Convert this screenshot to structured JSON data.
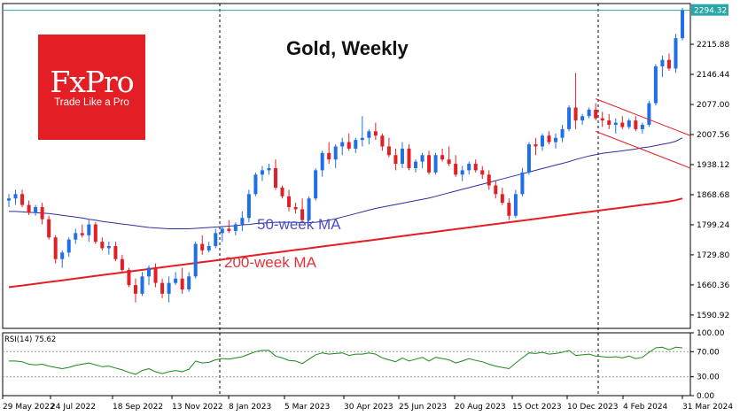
{
  "chart_title": "Gold, Weekly",
  "logo": {
    "brand": "FxPro",
    "tagline": "Trade Like a Pro"
  },
  "annotations": {
    "ma50": "50-week MA",
    "ma200": "200-week MA"
  },
  "rsi_label": "RSI(14) 75.62",
  "colors": {
    "up": "#1f6fe8",
    "down": "#e31e24",
    "ma50": "#2b2fa0",
    "ma200": "#e31e24",
    "rsi": "#1a8a1a",
    "price_line": "#2aa6a6",
    "channel": "#e31e24"
  },
  "chart_data": {
    "type": "candlestick",
    "title": "Gold, Weekly",
    "x_ticks": [
      "29 May 2022",
      "24 Jul 2022",
      "18 Sep 2022",
      "13 Nov 2022",
      "8 Jan 2023",
      "5 Mar 2023",
      "30 Apr 2023",
      "25 Jun 2023",
      "20 Aug 2023",
      "15 Oct 2023",
      "10 Dec 2023",
      "4 Feb 2024",
      "31 Mar 2024"
    ],
    "y_ticks": [
      1590.92,
      1660.36,
      1729.8,
      1799.24,
      1868.68,
      1938.12,
      2007.56,
      2077.0,
      2146.44,
      2215.88
    ],
    "ylim": [
      1560,
      2310
    ],
    "last_price": "2294.32",
    "candles": [
      {
        "o": 1855,
        "h": 1870,
        "l": 1840,
        "c": 1860
      },
      {
        "o": 1860,
        "h": 1880,
        "l": 1845,
        "c": 1870
      },
      {
        "o": 1870,
        "h": 1880,
        "l": 1840,
        "c": 1845
      },
      {
        "o": 1845,
        "h": 1855,
        "l": 1822,
        "c": 1827
      },
      {
        "o": 1827,
        "h": 1845,
        "l": 1820,
        "c": 1840
      },
      {
        "o": 1840,
        "h": 1850,
        "l": 1800,
        "c": 1812
      },
      {
        "o": 1812,
        "h": 1820,
        "l": 1765,
        "c": 1770
      },
      {
        "o": 1770,
        "h": 1775,
        "l": 1710,
        "c": 1720
      },
      {
        "o": 1720,
        "h": 1740,
        "l": 1700,
        "c": 1735
      },
      {
        "o": 1735,
        "h": 1770,
        "l": 1725,
        "c": 1765
      },
      {
        "o": 1765,
        "h": 1790,
        "l": 1755,
        "c": 1780
      },
      {
        "o": 1780,
        "h": 1800,
        "l": 1770,
        "c": 1775
      },
      {
        "o": 1775,
        "h": 1810,
        "l": 1760,
        "c": 1800
      },
      {
        "o": 1800,
        "h": 1805,
        "l": 1755,
        "c": 1760
      },
      {
        "o": 1760,
        "h": 1770,
        "l": 1740,
        "c": 1745
      },
      {
        "o": 1745,
        "h": 1760,
        "l": 1730,
        "c": 1750
      },
      {
        "o": 1750,
        "h": 1760,
        "l": 1715,
        "c": 1720
      },
      {
        "o": 1720,
        "h": 1730,
        "l": 1690,
        "c": 1695
      },
      {
        "o": 1695,
        "h": 1700,
        "l": 1655,
        "c": 1660
      },
      {
        "o": 1660,
        "h": 1675,
        "l": 1620,
        "c": 1640
      },
      {
        "o": 1640,
        "h": 1690,
        "l": 1635,
        "c": 1680
      },
      {
        "o": 1680,
        "h": 1705,
        "l": 1660,
        "c": 1700
      },
      {
        "o": 1700,
        "h": 1710,
        "l": 1655,
        "c": 1665
      },
      {
        "o": 1665,
        "h": 1675,
        "l": 1630,
        "c": 1640
      },
      {
        "o": 1640,
        "h": 1680,
        "l": 1620,
        "c": 1665
      },
      {
        "o": 1665,
        "h": 1690,
        "l": 1660,
        "c": 1675
      },
      {
        "o": 1675,
        "h": 1700,
        "l": 1640,
        "c": 1650
      },
      {
        "o": 1650,
        "h": 1690,
        "l": 1645,
        "c": 1680
      },
      {
        "o": 1680,
        "h": 1760,
        "l": 1675,
        "c": 1755
      },
      {
        "o": 1755,
        "h": 1775,
        "l": 1730,
        "c": 1740
      },
      {
        "o": 1740,
        "h": 1760,
        "l": 1735,
        "c": 1750
      },
      {
        "o": 1750,
        "h": 1790,
        "l": 1745,
        "c": 1780
      },
      {
        "o": 1780,
        "h": 1795,
        "l": 1760,
        "c": 1790
      },
      {
        "o": 1790,
        "h": 1810,
        "l": 1780,
        "c": 1785
      },
      {
        "o": 1785,
        "h": 1805,
        "l": 1775,
        "c": 1800
      },
      {
        "o": 1800,
        "h": 1830,
        "l": 1785,
        "c": 1815
      },
      {
        "o": 1815,
        "h": 1880,
        "l": 1805,
        "c": 1870
      },
      {
        "o": 1870,
        "h": 1920,
        "l": 1865,
        "c": 1915
      },
      {
        "o": 1915,
        "h": 1935,
        "l": 1900,
        "c": 1925
      },
      {
        "o": 1925,
        "h": 1940,
        "l": 1915,
        "c": 1930
      },
      {
        "o": 1930,
        "h": 1950,
        "l": 1880,
        "c": 1885
      },
      {
        "o": 1885,
        "h": 1890,
        "l": 1860,
        "c": 1865
      },
      {
        "o": 1865,
        "h": 1880,
        "l": 1830,
        "c": 1840
      },
      {
        "o": 1840,
        "h": 1850,
        "l": 1825,
        "c": 1835
      },
      {
        "o": 1835,
        "h": 1860,
        "l": 1805,
        "c": 1810
      },
      {
        "o": 1810,
        "h": 1865,
        "l": 1808,
        "c": 1860
      },
      {
        "o": 1860,
        "h": 1930,
        "l": 1855,
        "c": 1925
      },
      {
        "o": 1925,
        "h": 1970,
        "l": 1910,
        "c": 1965
      },
      {
        "o": 1965,
        "h": 1990,
        "l": 1940,
        "c": 1950
      },
      {
        "o": 1950,
        "h": 1985,
        "l": 1930,
        "c": 1980
      },
      {
        "o": 1980,
        "h": 2000,
        "l": 1960,
        "c": 1990
      },
      {
        "o": 1990,
        "h": 2010,
        "l": 1970,
        "c": 1975
      },
      {
        "o": 1975,
        "h": 2000,
        "l": 1965,
        "c": 1995
      },
      {
        "o": 1995,
        "h": 2050,
        "l": 1980,
        "c": 2000
      },
      {
        "o": 2000,
        "h": 2020,
        "l": 1985,
        "c": 2015
      },
      {
        "o": 2015,
        "h": 2035,
        "l": 1995,
        "c": 2005
      },
      {
        "o": 2005,
        "h": 2010,
        "l": 1970,
        "c": 1980
      },
      {
        "o": 1980,
        "h": 2000,
        "l": 1955,
        "c": 1960
      },
      {
        "o": 1960,
        "h": 1975,
        "l": 1925,
        "c": 1940
      },
      {
        "o": 1940,
        "h": 1990,
        "l": 1930,
        "c": 1975
      },
      {
        "o": 1975,
        "h": 1985,
        "l": 1925,
        "c": 1930
      },
      {
        "o": 1930,
        "h": 1950,
        "l": 1920,
        "c": 1945
      },
      {
        "o": 1945,
        "h": 1965,
        "l": 1930,
        "c": 1960
      },
      {
        "o": 1960,
        "h": 1970,
        "l": 1915,
        "c": 1920
      },
      {
        "o": 1920,
        "h": 1965,
        "l": 1915,
        "c": 1960
      },
      {
        "o": 1960,
        "h": 1975,
        "l": 1945,
        "c": 1950
      },
      {
        "o": 1950,
        "h": 1980,
        "l": 1935,
        "c": 1940
      },
      {
        "o": 1940,
        "h": 1960,
        "l": 1910,
        "c": 1915
      },
      {
        "o": 1915,
        "h": 1935,
        "l": 1900,
        "c": 1925
      },
      {
        "o": 1925,
        "h": 1945,
        "l": 1915,
        "c": 1940
      },
      {
        "o": 1940,
        "h": 1950,
        "l": 1920,
        "c": 1925
      },
      {
        "o": 1925,
        "h": 1935,
        "l": 1905,
        "c": 1915
      },
      {
        "o": 1915,
        "h": 1925,
        "l": 1880,
        "c": 1890
      },
      {
        "o": 1890,
        "h": 1900,
        "l": 1860,
        "c": 1870
      },
      {
        "o": 1870,
        "h": 1885,
        "l": 1845,
        "c": 1850
      },
      {
        "o": 1850,
        "h": 1860,
        "l": 1810,
        "c": 1820
      },
      {
        "o": 1820,
        "h": 1880,
        "l": 1815,
        "c": 1870
      },
      {
        "o": 1870,
        "h": 1930,
        "l": 1865,
        "c": 1920
      },
      {
        "o": 1920,
        "h": 1990,
        "l": 1915,
        "c": 1985
      },
      {
        "o": 1985,
        "h": 2000,
        "l": 1960,
        "c": 1980
      },
      {
        "o": 1980,
        "h": 2010,
        "l": 1970,
        "c": 2005
      },
      {
        "o": 2005,
        "h": 2015,
        "l": 1985,
        "c": 1990
      },
      {
        "o": 1990,
        "h": 2010,
        "l": 1975,
        "c": 2000
      },
      {
        "o": 2000,
        "h": 2030,
        "l": 1990,
        "c": 2020
      },
      {
        "o": 2020,
        "h": 2075,
        "l": 2015,
        "c": 2070
      },
      {
        "o": 2070,
        "h": 2150,
        "l": 2020,
        "c": 2040
      },
      {
        "o": 2040,
        "h": 2055,
        "l": 2030,
        "c": 2050
      },
      {
        "o": 2050,
        "h": 2070,
        "l": 2045,
        "c": 2065
      },
      {
        "o": 2065,
        "h": 2080,
        "l": 2040,
        "c": 2045
      },
      {
        "o": 2045,
        "h": 2060,
        "l": 2025,
        "c": 2040
      },
      {
        "o": 2040,
        "h": 2055,
        "l": 2020,
        "c": 2030
      },
      {
        "o": 2030,
        "h": 2045,
        "l": 2010,
        "c": 2035
      },
      {
        "o": 2035,
        "h": 2050,
        "l": 2020,
        "c": 2025
      },
      {
        "o": 2025,
        "h": 2045,
        "l": 2020,
        "c": 2040
      },
      {
        "o": 2040,
        "h": 2050,
        "l": 2015,
        "c": 2020
      },
      {
        "o": 2020,
        "h": 2035,
        "l": 2010,
        "c": 2030
      },
      {
        "o": 2030,
        "h": 2085,
        "l": 2025,
        "c": 2080
      },
      {
        "o": 2080,
        "h": 2170,
        "l": 2075,
        "c": 2165
      },
      {
        "o": 2165,
        "h": 2190,
        "l": 2140,
        "c": 2180
      },
      {
        "o": 2180,
        "h": 2195,
        "l": 2155,
        "c": 2160
      },
      {
        "o": 2160,
        "h": 2240,
        "l": 2150,
        "c": 2230
      },
      {
        "o": 2230,
        "h": 2300,
        "l": 2225,
        "c": 2294
      }
    ],
    "ma50": [
      1830,
      1830,
      1829,
      1828,
      1827,
      1826,
      1825,
      1823,
      1821,
      1819,
      1817,
      1815,
      1812,
      1810,
      1807,
      1805,
      1803,
      1801,
      1799,
      1797,
      1795,
      1793,
      1792,
      1791,
      1790,
      1790,
      1790,
      1790,
      1791,
      1792,
      1793,
      1794,
      1795,
      1796,
      1797,
      1799,
      1800,
      1802,
      1803,
      1804,
      1805,
      1805,
      1805,
      1805,
      1804,
      1804,
      1805,
      1807,
      1810,
      1813,
      1817,
      1821,
      1825,
      1829,
      1833,
      1837,
      1840,
      1843,
      1846,
      1849,
      1852,
      1855,
      1858,
      1861,
      1865,
      1869,
      1873,
      1877,
      1881,
      1885,
      1889,
      1893,
      1897,
      1901,
      1905,
      1909,
      1913,
      1917,
      1921,
      1925,
      1929,
      1933,
      1937,
      1941,
      1945,
      1950,
      1954,
      1958,
      1961,
      1964,
      1966,
      1968,
      1970,
      1972,
      1974,
      1977,
      1979,
      1982,
      1985,
      1988,
      1992,
      2000
    ],
    "ma200": [
      1655,
      1657,
      1659,
      1661,
      1663,
      1665,
      1667,
      1669,
      1671,
      1673,
      1675,
      1677,
      1679,
      1681,
      1683,
      1685,
      1687,
      1689,
      1691,
      1693,
      1695,
      1697,
      1699,
      1701,
      1703,
      1705,
      1707,
      1709,
      1711,
      1713,
      1715,
      1717,
      1719,
      1721,
      1723,
      1725,
      1727,
      1729,
      1731,
      1733,
      1735,
      1737,
      1739,
      1741,
      1743,
      1745,
      1747,
      1749,
      1751,
      1753,
      1755,
      1757,
      1759,
      1761,
      1763,
      1765,
      1767,
      1769,
      1771,
      1773,
      1775,
      1777,
      1779,
      1781,
      1783,
      1785,
      1787,
      1789,
      1791,
      1793,
      1795,
      1797,
      1799,
      1801,
      1803,
      1805,
      1807,
      1809,
      1811,
      1813,
      1815,
      1817,
      1819,
      1821,
      1823,
      1825,
      1827,
      1829,
      1831,
      1833,
      1835,
      1837,
      1839,
      1841,
      1843,
      1845,
      1847,
      1849,
      1851,
      1853,
      1856,
      1860
    ],
    "channel": {
      "start_index": 88,
      "end_index": 102,
      "upper": [
        2090,
        2005
      ],
      "lower": [
        2015,
        1930
      ]
    },
    "rsi": {
      "name": "RSI(14)",
      "last": 75.62,
      "ylim": [
        0,
        100
      ],
      "y_ticks": [
        100.0,
        70.0,
        30.0,
        0.0
      ],
      "levels": [
        70,
        30
      ],
      "values": [
        55,
        55,
        54,
        50,
        49,
        50,
        47,
        45,
        43,
        45,
        48,
        50,
        52,
        49,
        46,
        47,
        44,
        41,
        37,
        34,
        40,
        43,
        38,
        35,
        38,
        40,
        38,
        42,
        55,
        52,
        53,
        57,
        59,
        58,
        60,
        62,
        66,
        70,
        72,
        72,
        63,
        60,
        56,
        55,
        51,
        58,
        65,
        68,
        66,
        67,
        68,
        64,
        66,
        66,
        68,
        66,
        60,
        57,
        54,
        60,
        55,
        58,
        61,
        55,
        61,
        59,
        57,
        52,
        55,
        59,
        56,
        54,
        50,
        47,
        45,
        43,
        52,
        60,
        68,
        67,
        69,
        66,
        67,
        69,
        72,
        64,
        65,
        66,
        63,
        62,
        61,
        62,
        60,
        63,
        59,
        61,
        69,
        76,
        77,
        73,
        77,
        76
      ]
    }
  }
}
